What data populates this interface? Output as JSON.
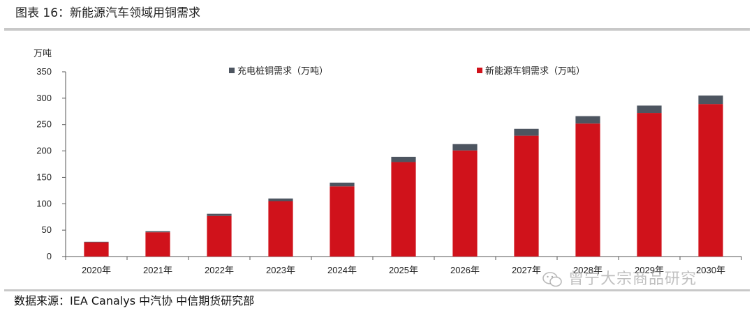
{
  "figure": {
    "title": "图表 16：新能源汽车领域用铜需求",
    "source": "数据来源：IEA Canalys 中汽协 中信期货研究部",
    "watermark": "曾宁大宗商品研究"
  },
  "chart_data": {
    "type": "bar",
    "stacked": true,
    "ylabel": "万吨",
    "ylim": [
      0,
      350
    ],
    "yticks": [
      0,
      50,
      100,
      150,
      200,
      250,
      300,
      350
    ],
    "categories": [
      "2020年",
      "2021年",
      "2022年",
      "2023年",
      "2024年",
      "2025年",
      "2026年",
      "2027年",
      "2028年",
      "2029年",
      "2030年"
    ],
    "series": [
      {
        "name": "新能源车铜需求（万吨）",
        "color": "#d0121b",
        "values": [
          27,
          46,
          77,
          105,
          133,
          179,
          201,
          229,
          252,
          272,
          289
        ]
      },
      {
        "name": "充电桩铜需求（万吨）",
        "color": "#4d5560",
        "values": [
          1,
          2,
          4,
          5,
          7,
          10,
          12,
          13,
          14,
          14,
          16
        ]
      }
    ],
    "legend": [
      "充电桩铜需求（万吨）",
      "新能源车铜需求（万吨）"
    ],
    "legend_position": "top",
    "grid": false
  }
}
